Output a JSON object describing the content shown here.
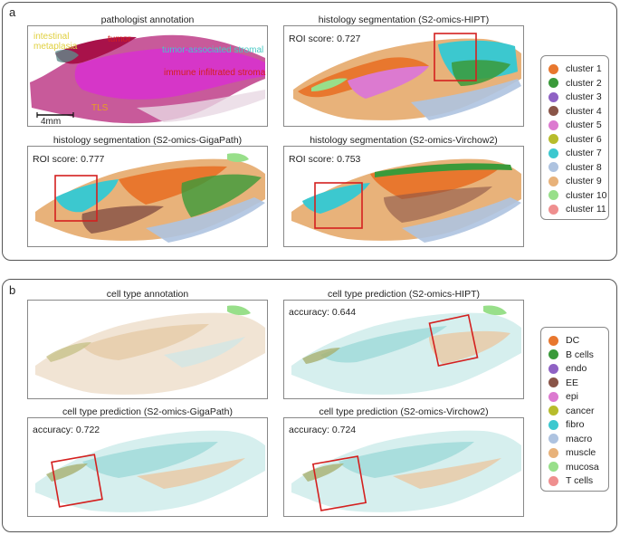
{
  "panel_a": {
    "letter": "a",
    "titles": {
      "annotation": "pathologist annotation",
      "hipt": "histology segmentation (S2-omics-HIPT)",
      "gigapath": "histology segmentation (S2-omics-GigaPath)",
      "virchow": "histology segmentation (S2-omics-Virchow2)"
    },
    "scores": {
      "hipt": "ROI score: 0.727",
      "gigapath": "ROI score: 0.777",
      "virchow": "ROI score: 0.753"
    },
    "annotation_labels": {
      "intestinal_1": "intestinal",
      "intestinal_2": "metaplasia",
      "tumor": "tumor",
      "tumor_stroma": "tumor-associated stromal",
      "immune_stroma": "immune infiltrated stroma",
      "tls": "TLS"
    },
    "scale_bar": "4mm",
    "legend": [
      {
        "label": "cluster 1",
        "color": "#e8772e"
      },
      {
        "label": "cluster 2",
        "color": "#3a9a3a"
      },
      {
        "label": "cluster 3",
        "color": "#8f62c4"
      },
      {
        "label": "cluster 4",
        "color": "#8a5548"
      },
      {
        "label": "cluster 5",
        "color": "#dc7ad0"
      },
      {
        "label": "cluster 6",
        "color": "#b7bc2c"
      },
      {
        "label": "cluster 7",
        "color": "#3cc8cf"
      },
      {
        "label": "cluster 8",
        "color": "#aec3e0"
      },
      {
        "label": "cluster 9",
        "color": "#e8b27a"
      },
      {
        "label": "cluster 10",
        "color": "#98df8a"
      },
      {
        "label": "cluster 11",
        "color": "#ef8f8f"
      }
    ]
  },
  "panel_b": {
    "letter": "b",
    "titles": {
      "annotation": "cell type annotation",
      "hipt": "cell type prediction (S2-omics-HIPT)",
      "gigapath": "cell type prediction (S2-omics-GigaPath)",
      "virchow": "cell type prediction (S2-omics-Virchow2)"
    },
    "scores": {
      "hipt": "accuracy: 0.644",
      "gigapath": "accuracy: 0.722",
      "virchow": "accuracy: 0.724"
    },
    "legend": [
      {
        "label": "DC",
        "color": "#e8772e"
      },
      {
        "label": "B cells",
        "color": "#3a9a3a"
      },
      {
        "label": "endo",
        "color": "#8f62c4"
      },
      {
        "label": "EE",
        "color": "#8a5548"
      },
      {
        "label": "epi",
        "color": "#dc7ad0"
      },
      {
        "label": "cancer",
        "color": "#b7bc2c"
      },
      {
        "label": "fibro",
        "color": "#3cc8cf"
      },
      {
        "label": "macro",
        "color": "#aec3e0"
      },
      {
        "label": "muscle",
        "color": "#e8b27a"
      },
      {
        "label": "mucosa",
        "color": "#98df8a"
      },
      {
        "label": "T cells",
        "color": "#ef8f8f"
      }
    ]
  },
  "colors": {
    "roi_box": "#d4201f",
    "tissue_pink": "#c85a9a",
    "tumor_red": "#a8124a",
    "annotation_magenta": "#d636c8"
  }
}
